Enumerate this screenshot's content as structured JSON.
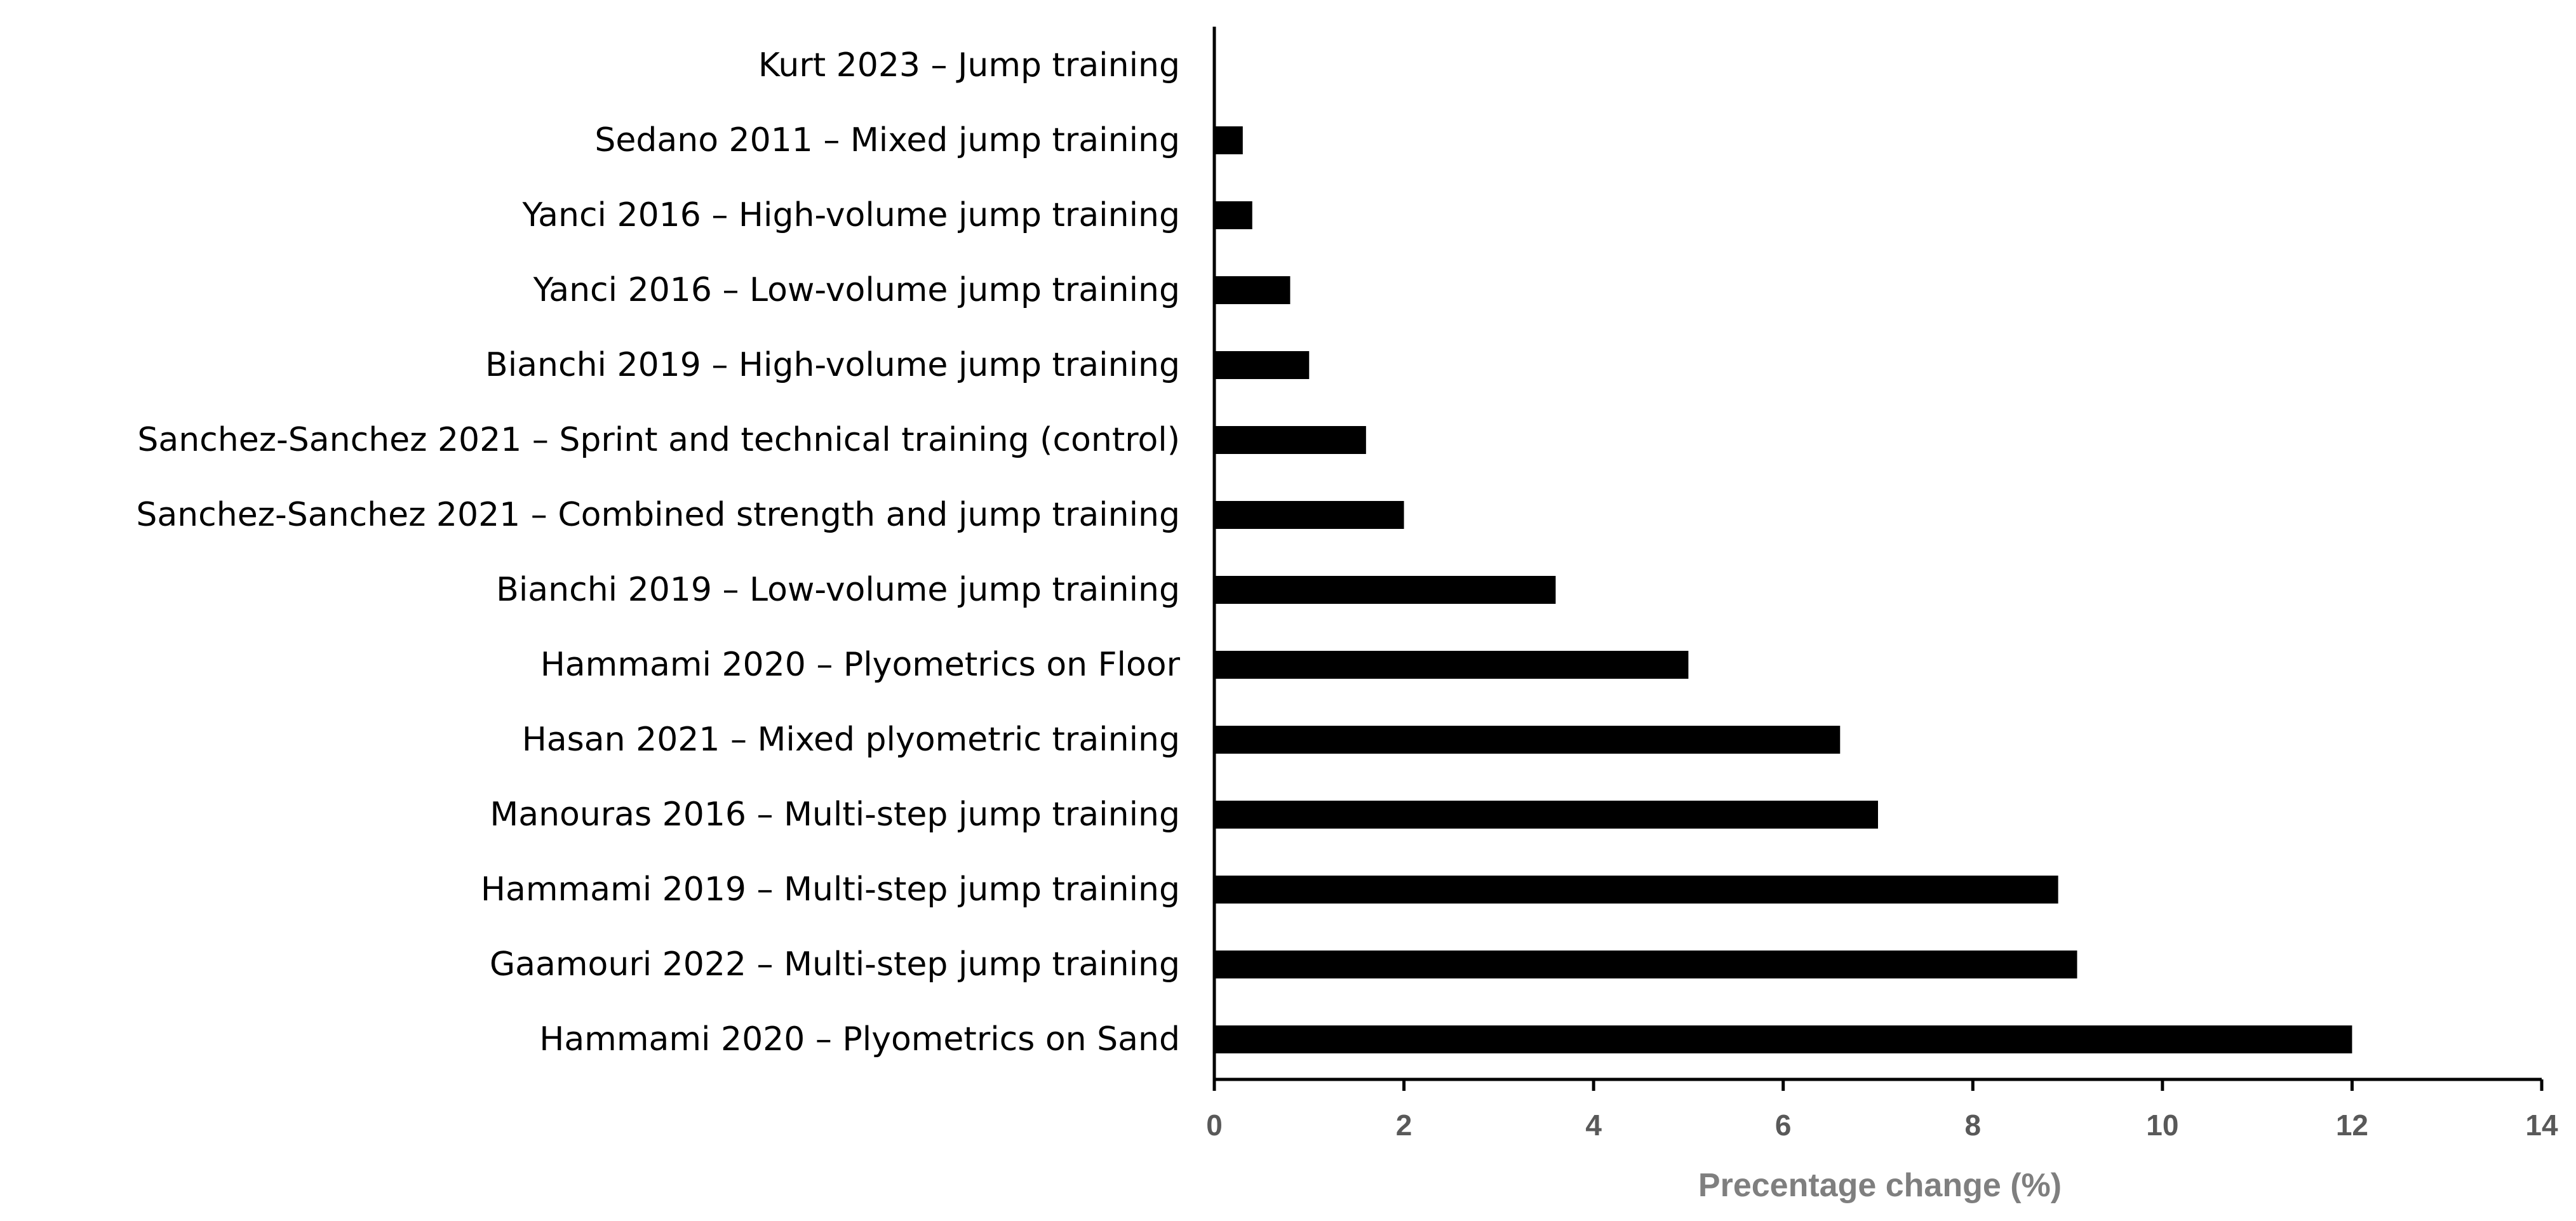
{
  "chart_data": {
    "type": "bar",
    "orientation": "horizontal",
    "categories": [
      "Kurt 2023 – Jump training",
      "Sedano 2011 – Mixed jump training",
      "Yanci 2016 – High-volume jump training",
      "Yanci 2016 – Low-volume jump training",
      "Bianchi 2019 – High-volume jump training",
      "Sanchez-Sanchez 2021 – Sprint and technical training (control)",
      "Sanchez-Sanchez 2021 – Combined strength and jump training",
      "Bianchi 2019 – Low-volume jump training",
      "Hammami 2020 – Plyometrics on Floor",
      "Hasan 2021 – Mixed plyometric training",
      "Manouras 2016 – Multi-step jump training",
      "Hammami 2019 – Multi-step jump training",
      "Gaamouri 2022 – Multi-step jump training",
      "Hammami 2020 – Plyometrics on Sand"
    ],
    "values": [
      0,
      0.3,
      0.4,
      0.8,
      1.0,
      1.6,
      2.0,
      3.6,
      5.0,
      6.6,
      7.0,
      8.9,
      9.1,
      12.0
    ],
    "xlabel": "Precentage change (%)",
    "ylabel": "",
    "title": "",
    "xlim": [
      0,
      14
    ],
    "xticks": [
      "0",
      "2",
      "4",
      "6",
      "8",
      "10",
      "12",
      "14"
    ],
    "grid": false,
    "legend": "none",
    "bar_color": "#000000",
    "axis_color": "#000000",
    "tick_label_color": "#595959",
    "axis_title_color": "#7f7f7f"
  }
}
